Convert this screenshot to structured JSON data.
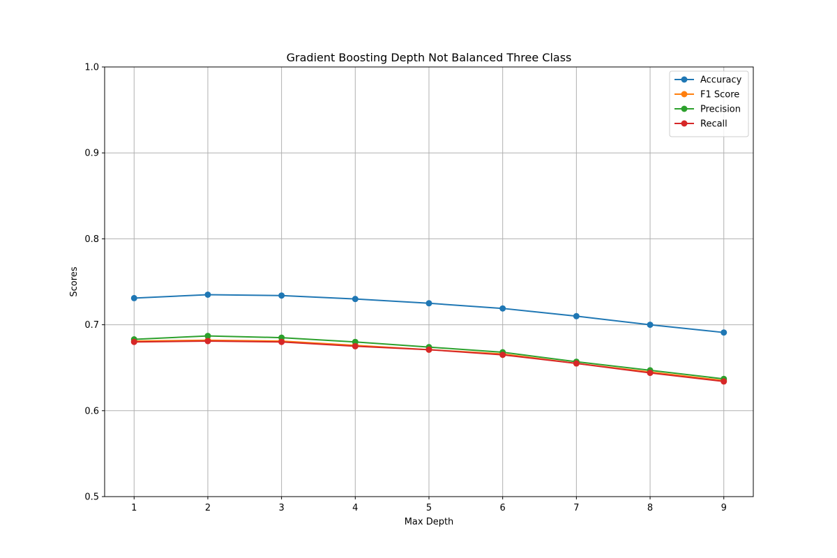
{
  "chart_data": {
    "type": "line",
    "title": "Gradient Boosting Depth Not Balanced Three Class",
    "xlabel": "Max Depth",
    "ylabel": "Scores",
    "x": [
      1,
      2,
      3,
      4,
      5,
      6,
      7,
      8,
      9
    ],
    "xlim": [
      0.6,
      9.4
    ],
    "ylim": [
      0.5,
      1.0
    ],
    "x_ticks": [
      "1",
      "2",
      "3",
      "4",
      "5",
      "6",
      "7",
      "8",
      "9"
    ],
    "y_ticks": [
      "0.5",
      "0.6",
      "0.7",
      "0.8",
      "0.9",
      "1.0"
    ],
    "y_tick_values": [
      0.5,
      0.6,
      0.7,
      0.8,
      0.9,
      1.0
    ],
    "grid": true,
    "legend_position": "top-right",
    "series": [
      {
        "name": "Accuracy",
        "color": "#1f77b4",
        "values": [
          0.731,
          0.735,
          0.734,
          0.73,
          0.725,
          0.719,
          0.71,
          0.7,
          0.691
        ]
      },
      {
        "name": "F1 Score",
        "color": "#ff7f0e",
        "values": [
          0.681,
          0.682,
          0.681,
          0.676,
          0.671,
          0.666,
          0.655,
          0.645,
          0.635
        ]
      },
      {
        "name": "Precision",
        "color": "#2ca02c",
        "values": [
          0.683,
          0.687,
          0.685,
          0.68,
          0.674,
          0.668,
          0.657,
          0.647,
          0.637
        ]
      },
      {
        "name": "Recall",
        "color": "#d62728",
        "values": [
          0.68,
          0.681,
          0.68,
          0.675,
          0.671,
          0.665,
          0.655,
          0.644,
          0.634
        ]
      }
    ]
  }
}
